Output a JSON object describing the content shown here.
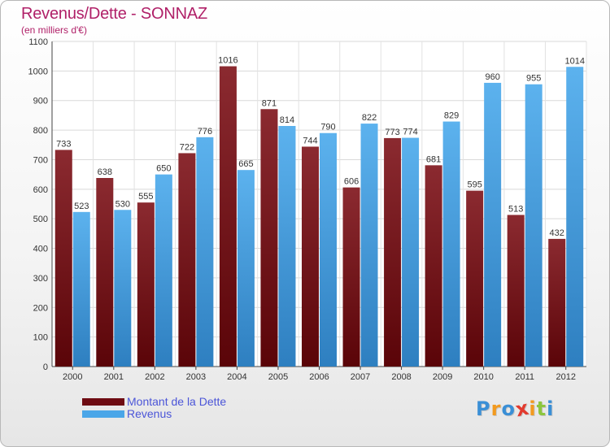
{
  "title": "Revenus/Dette - SONNAZ",
  "subtitle": "(en milliers d'€)",
  "colors": {
    "title": "#b02068",
    "dette": "#7a1a1f",
    "revenus": "#4aa6e8",
    "legend_text": "#4b55d8"
  },
  "legend": [
    {
      "label": "Montant de la Dette",
      "color": "#6e0b12"
    },
    {
      "label": "Revenus",
      "color": "#4aa6e8"
    }
  ],
  "logo": {
    "text": "Proxiti",
    "letters": [
      {
        "ch": "P",
        "color": "#3a8fd6"
      },
      {
        "ch": "r",
        "color": "#f29a1f"
      },
      {
        "ch": "o",
        "color": "#3a8fd6"
      },
      {
        "ch": "x",
        "color": "#e23a2e"
      },
      {
        "ch": "i",
        "color": "#f29a1f"
      },
      {
        "ch": "t",
        "color": "#8cc63e"
      },
      {
        "ch": "i",
        "color": "#3a8fd6"
      }
    ]
  },
  "chart_data": {
    "type": "bar",
    "title": "Revenus/Dette - SONNAZ",
    "subtitle": "(en milliers d'€)",
    "categories": [
      "2000",
      "2001",
      "2002",
      "2003",
      "2004",
      "2005",
      "2006",
      "2007",
      "2008",
      "2009",
      "2010",
      "2011",
      "2012"
    ],
    "series": [
      {
        "name": "Montant de la Dette",
        "values": [
          733,
          638,
          555,
          722,
          1016,
          871,
          744,
          606,
          773,
          681,
          595,
          513,
          432
        ]
      },
      {
        "name": "Revenus",
        "values": [
          523,
          530,
          650,
          776,
          665,
          814,
          790,
          822,
          774,
          829,
          960,
          955,
          1014
        ]
      }
    ],
    "yticks": [
      "0",
      "100",
      "200",
      "300",
      "400",
      "500",
      "600",
      "700",
      "800",
      "900",
      "1000",
      "1100"
    ],
    "ylim": [
      0,
      1100
    ],
    "grid": true,
    "legend_position": "bottom-left"
  }
}
